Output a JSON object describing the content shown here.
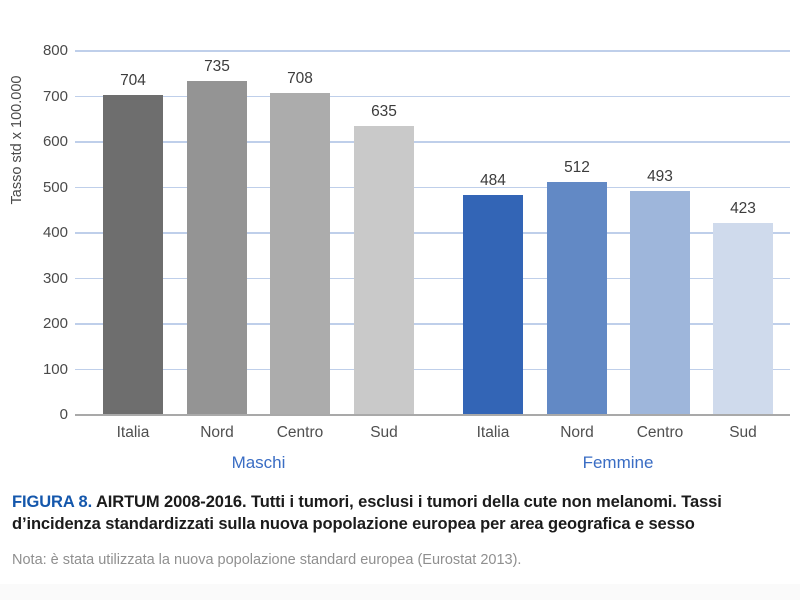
{
  "chart_data": {
    "type": "bar",
    "title": "",
    "xlabel": "",
    "ylabel": "Tasso std x 100.000",
    "ylim": [
      0,
      800
    ],
    "yticks": [
      0,
      100,
      200,
      300,
      400,
      500,
      600,
      700,
      800
    ],
    "grid": true,
    "legend_position": "none",
    "groups": [
      {
        "label": "Maschi",
        "categories": [
          "Italia",
          "Nord",
          "Centro",
          "Sud"
        ],
        "values": [
          704,
          735,
          708,
          635
        ],
        "bar_colors": [
          "#6e6e6e",
          "#949494",
          "#acacac",
          "#c9c9c9"
        ]
      },
      {
        "label": "Femmine",
        "categories": [
          "Italia",
          "Nord",
          "Centro",
          "Sud"
        ],
        "values": [
          484,
          512,
          493,
          423
        ],
        "bar_colors": [
          "#3365b6",
          "#6289c5",
          "#9eb6db",
          "#cfdaec"
        ]
      }
    ]
  },
  "caption": {
    "figure_label": "FIGURA 8.",
    "text": "AIRTUM 2008-2016. Tutti i tumori, esclusi i tumori della cute non melanomi. Tassi d’incidenza standardizzati sulla nuova popolazione europea per area geografica e sesso"
  },
  "note": "Nota: è stata utilizzata la nuova popolazione standard europea (Eurostat 2013).",
  "colors": {
    "gridline": "#bfcfea",
    "baseline": "#a9a9a9",
    "tick_label": "#4a4a4a",
    "value_label": "#3c3c3c",
    "category_label": "#4f4f4f",
    "group_label_blue": "#3a6dc4",
    "figure_label_blue": "#1457ac",
    "caption_text": "#1b1b1b",
    "note_gray": "#8f8f8f"
  }
}
